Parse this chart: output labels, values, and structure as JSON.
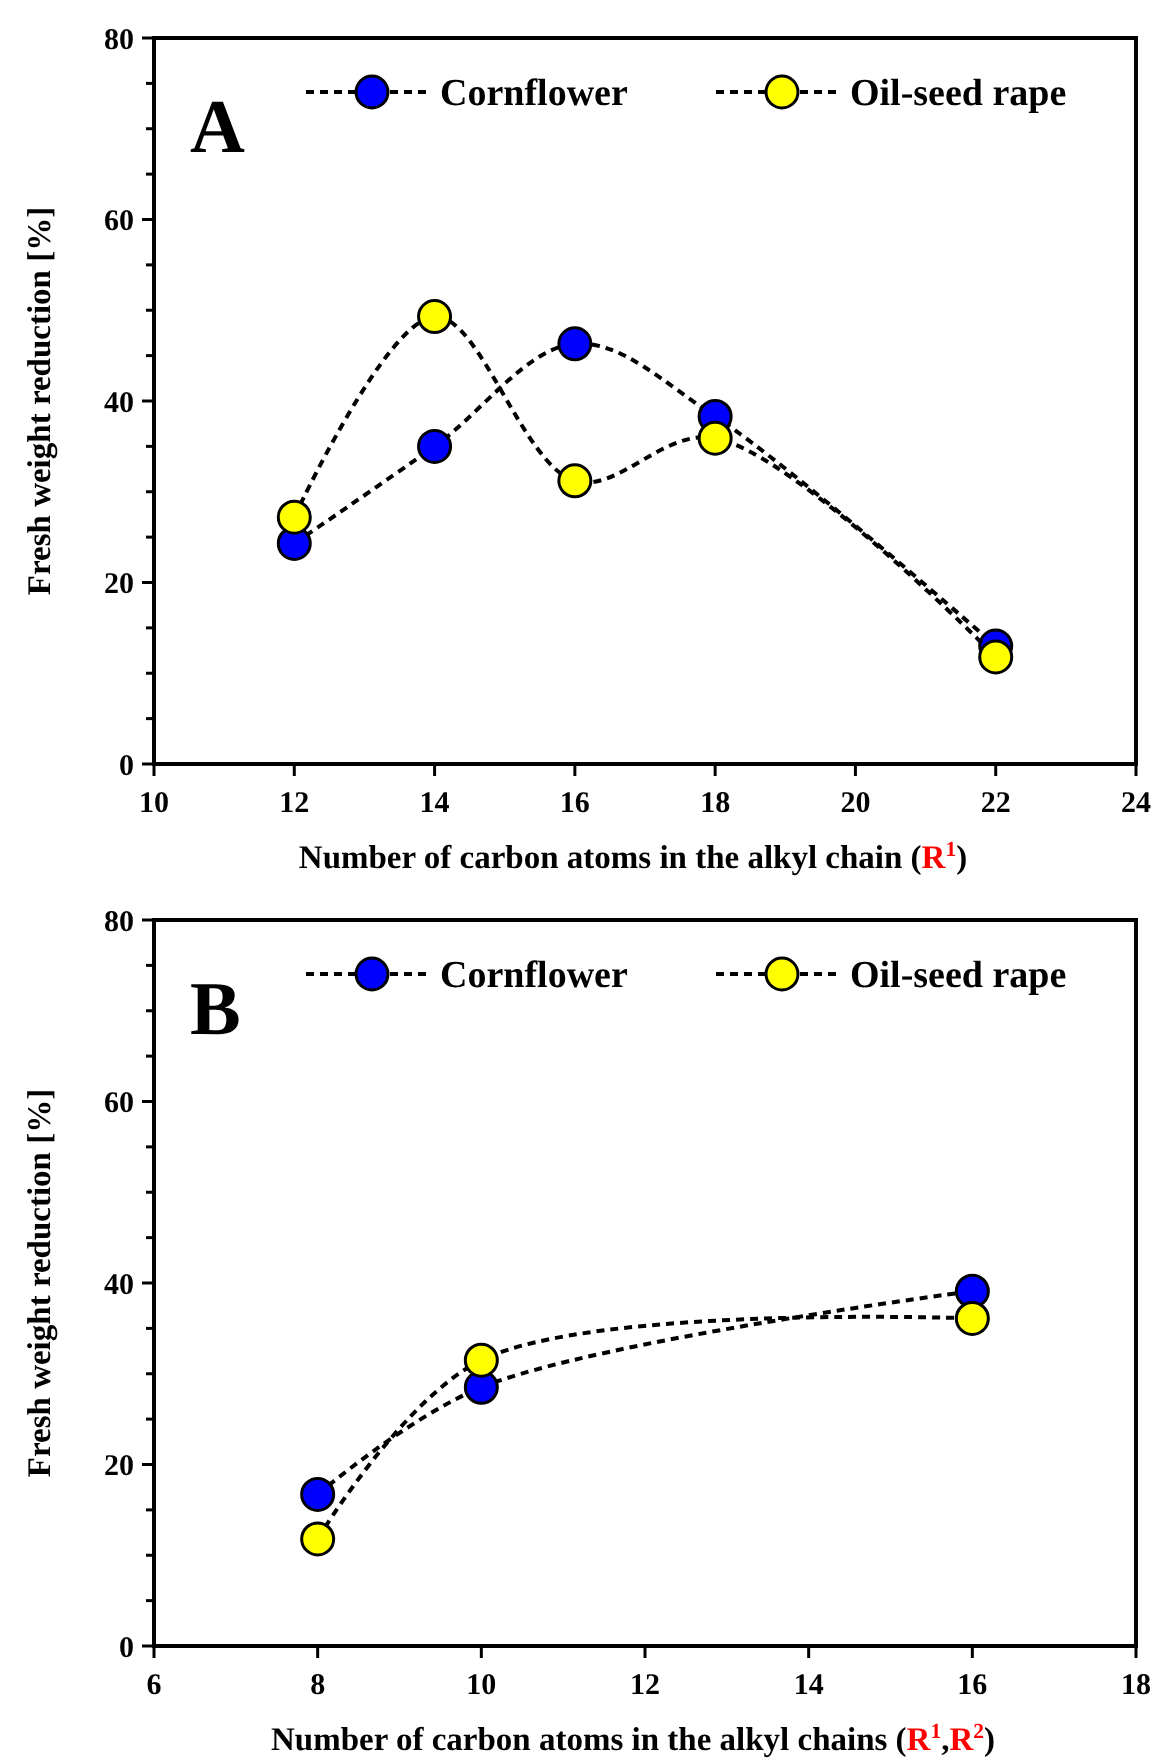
{
  "chart_data": [
    {
      "type": "line",
      "title": "A",
      "xlabel": "Number of carbon atoms in the alkyl chain (R$^{1}$)",
      "ylabel": "Fresh weight reduction [%]",
      "x": [
        12,
        14,
        16,
        18,
        22
      ],
      "series": [
        {
          "name": "Cornflower",
          "color": "#0000ff",
          "values": [
            24.3,
            35,
            46.3,
            38.3,
            13
          ]
        },
        {
          "name": "Oil-seed rape",
          "color": "#ffff00",
          "values": [
            27.2,
            49.3,
            31.2,
            35.9,
            11.8
          ]
        }
      ],
      "xlim": [
        10,
        24
      ],
      "xticks": [
        10,
        12,
        14,
        16,
        18,
        20,
        22,
        24
      ],
      "ylim": [
        0,
        80
      ],
      "yticks": [
        0,
        {
          "value": 5,
          "label": null
        },
        {
          "value": 10,
          "label": null
        },
        {
          "value": 15,
          "label": null
        },
        20,
        {
          "value": 25,
          "label": null
        },
        {
          "value": 30,
          "label": null
        },
        {
          "value": 35,
          "label": null
        },
        40,
        {
          "value": 45,
          "label": null
        },
        {
          "value": 50,
          "label": null
        },
        {
          "value": 55,
          "label": null
        },
        60,
        {
          "value": 65,
          "label": null
        },
        {
          "value": 70,
          "label": null
        },
        {
          "value": 75,
          "label": null
        },
        80
      ],
      "legend": "top right",
      "marker": "circle",
      "line_style": "dashed",
      "grid": false
    },
    {
      "type": "line",
      "title": "B",
      "xlabel": "Number of carbon atoms in the alkyl chains (R$^{1}$,R$^{2}$)",
      "ylabel": "Fresh weight reduction [%]",
      "x": [
        8,
        10,
        16
      ],
      "series": [
        {
          "name": "Cornflower",
          "color": "#0000ff",
          "values": [
            16.7,
            28.5,
            39.1
          ]
        },
        {
          "name": "Oil-seed rape",
          "color": "#ffff00",
          "values": [
            11.8,
            31.5,
            36.1
          ]
        }
      ],
      "xlim": [
        6,
        18
      ],
      "xticks": [
        6,
        8,
        10,
        12,
        14,
        16,
        18
      ],
      "ylim": [
        0,
        80
      ],
      "yticks": [
        0,
        {
          "value": 5,
          "label": null
        },
        {
          "value": 10,
          "label": null
        },
        {
          "value": 15,
          "label": null
        },
        20,
        {
          "value": 25,
          "label": null
        },
        {
          "value": 30,
          "label": null
        },
        {
          "value": 35,
          "label": null
        },
        40,
        {
          "value": 45,
          "label": null
        },
        {
          "value": 50,
          "label": null
        },
        {
          "value": 55,
          "label": null
        },
        60,
        {
          "value": 65,
          "label": null
        },
        {
          "value": 70,
          "label": null
        },
        {
          "value": 75,
          "label": null
        },
        80
      ],
      "legend": "top right",
      "marker": "circle",
      "line_style": "dashed",
      "grid": false
    }
  ]
}
